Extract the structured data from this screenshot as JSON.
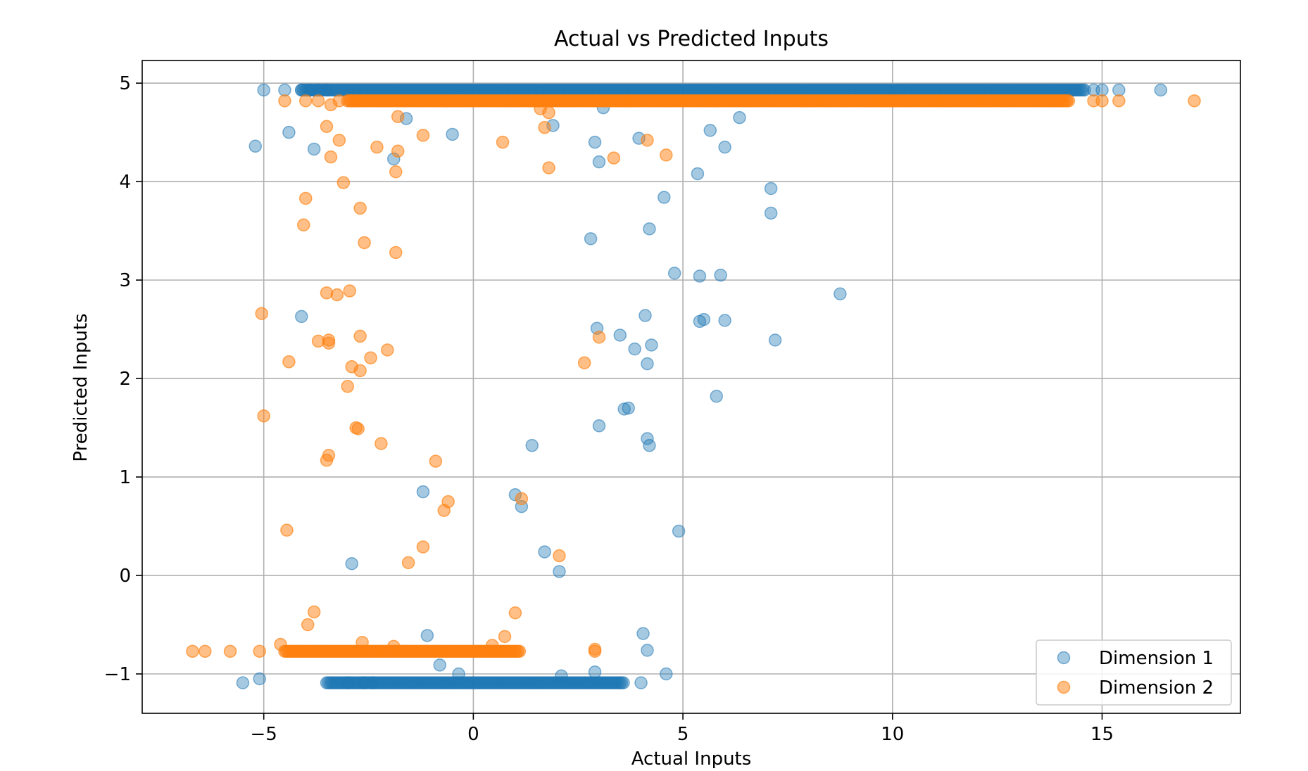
{
  "chart_data": {
    "type": "scatter",
    "title": "Actual vs Predicted Inputs",
    "xlabel": "Actual Inputs",
    "ylabel": "Predicted Inputs",
    "xlim": [
      -7.9,
      18.3
    ],
    "ylim": [
      -1.4,
      5.23
    ],
    "xticks": [
      -5,
      0,
      5,
      10,
      15
    ],
    "xtick_labels": [
      "−5",
      "0",
      "5",
      "10",
      "15"
    ],
    "yticks": [
      -1,
      0,
      1,
      2,
      3,
      4,
      5
    ],
    "ytick_labels": [
      "−1",
      "0",
      "1",
      "2",
      "3",
      "4",
      "5"
    ],
    "grid": true,
    "legend_position": "lower-right",
    "series": [
      {
        "name": "Dimension 1",
        "color": "#1f77b4",
        "opacity": 0.4,
        "band_upper": {
          "x_from": -4.1,
          "x_to": 14.6,
          "y": 4.93
        },
        "band_lower": {
          "x_from": -3.5,
          "x_to": 3.6,
          "y": -1.09
        },
        "points": [
          [
            -5.0,
            4.93
          ],
          [
            -4.5,
            4.93
          ],
          [
            -4.1,
            4.93
          ],
          [
            -3.9,
            4.93
          ],
          [
            -3.7,
            4.93
          ],
          [
            -3.5,
            4.93
          ],
          [
            14.8,
            4.93
          ],
          [
            15.0,
            4.93
          ],
          [
            15.4,
            4.93
          ],
          [
            16.4,
            4.93
          ],
          [
            -5.5,
            -1.09
          ],
          [
            -5.1,
            -1.05
          ],
          [
            -3.0,
            -1.09
          ],
          [
            -2.6,
            -1.09
          ],
          [
            -2.4,
            -1.09
          ],
          [
            4.0,
            -1.09
          ],
          [
            -5.2,
            4.36
          ],
          [
            -4.4,
            4.5
          ],
          [
            -3.8,
            4.33
          ],
          [
            -1.9,
            4.23
          ],
          [
            -1.6,
            4.64
          ],
          [
            -0.5,
            4.48
          ],
          [
            1.9,
            4.57
          ],
          [
            2.9,
            4.4
          ],
          [
            3.0,
            4.2
          ],
          [
            3.1,
            4.75
          ],
          [
            3.95,
            4.44
          ],
          [
            5.35,
            4.08
          ],
          [
            5.65,
            4.52
          ],
          [
            6.0,
            4.35
          ],
          [
            6.35,
            4.65
          ],
          [
            7.1,
            3.93
          ],
          [
            7.1,
            3.68
          ],
          [
            4.55,
            3.84
          ],
          [
            4.2,
            3.52
          ],
          [
            2.8,
            3.42
          ],
          [
            4.8,
            3.07
          ],
          [
            5.4,
            3.04
          ],
          [
            5.9,
            3.05
          ],
          [
            8.75,
            2.86
          ],
          [
            -4.1,
            2.63
          ],
          [
            2.95,
            2.51
          ],
          [
            4.1,
            2.64
          ],
          [
            3.5,
            2.44
          ],
          [
            4.25,
            2.34
          ],
          [
            3.85,
            2.3
          ],
          [
            4.15,
            2.15
          ],
          [
            5.4,
            2.58
          ],
          [
            5.5,
            2.6
          ],
          [
            6.0,
            2.59
          ],
          [
            7.2,
            2.39
          ],
          [
            5.8,
            1.82
          ],
          [
            3.6,
            1.69
          ],
          [
            3.7,
            1.7
          ],
          [
            3.0,
            1.52
          ],
          [
            4.15,
            1.39
          ],
          [
            4.2,
            1.32
          ],
          [
            1.4,
            1.32
          ],
          [
            -1.2,
            0.85
          ],
          [
            1.0,
            0.82
          ],
          [
            1.15,
            0.7
          ],
          [
            4.9,
            0.45
          ],
          [
            -2.9,
            0.12
          ],
          [
            1.7,
            0.24
          ],
          [
            2.05,
            0.04
          ],
          [
            -1.1,
            -0.61
          ],
          [
            -0.8,
            -0.91
          ],
          [
            -0.35,
            -1.0
          ],
          [
            2.1,
            -1.02
          ],
          [
            2.9,
            -0.98
          ],
          [
            4.05,
            -0.59
          ],
          [
            4.15,
            -0.76
          ],
          [
            4.6,
            -1.0
          ]
        ]
      },
      {
        "name": "Dimension 2",
        "color": "#ff7f0e",
        "opacity": 0.5,
        "band_upper": {
          "x_from": -3.0,
          "x_to": 14.2,
          "y": 4.82
        },
        "band_lower": {
          "x_from": -4.5,
          "x_to": 1.1,
          "y": -0.77
        },
        "points": [
          [
            -4.5,
            4.82
          ],
          [
            -4.0,
            4.82
          ],
          [
            -3.7,
            4.82
          ],
          [
            -3.4,
            4.78
          ],
          [
            -3.2,
            4.82
          ],
          [
            14.8,
            4.82
          ],
          [
            15.0,
            4.82
          ],
          [
            15.4,
            4.82
          ],
          [
            17.2,
            4.82
          ],
          [
            -6.7,
            -0.77
          ],
          [
            -6.4,
            -0.77
          ],
          [
            -5.8,
            -0.77
          ],
          [
            -5.1,
            -0.77
          ],
          [
            2.9,
            -0.77
          ],
          [
            2.9,
            -0.75
          ],
          [
            -3.5,
            4.56
          ],
          [
            -3.2,
            4.42
          ],
          [
            -3.4,
            4.25
          ],
          [
            -2.3,
            4.35
          ],
          [
            -1.8,
            4.31
          ],
          [
            -1.85,
            4.1
          ],
          [
            -1.8,
            4.66
          ],
          [
            -1.2,
            4.47
          ],
          [
            0.7,
            4.4
          ],
          [
            1.7,
            4.55
          ],
          [
            1.8,
            4.7
          ],
          [
            1.8,
            4.14
          ],
          [
            3.35,
            4.24
          ],
          [
            4.15,
            4.42
          ],
          [
            4.6,
            4.27
          ],
          [
            1.6,
            4.74
          ],
          [
            -3.1,
            3.99
          ],
          [
            -4.0,
            3.83
          ],
          [
            -2.7,
            3.73
          ],
          [
            -4.05,
            3.56
          ],
          [
            -2.6,
            3.38
          ],
          [
            -1.85,
            3.28
          ],
          [
            -3.5,
            2.87
          ],
          [
            -3.25,
            2.85
          ],
          [
            -2.95,
            2.89
          ],
          [
            -5.05,
            2.66
          ],
          [
            -3.7,
            2.38
          ],
          [
            -3.45,
            2.39
          ],
          [
            -3.45,
            2.36
          ],
          [
            -2.7,
            2.43
          ],
          [
            -2.05,
            2.29
          ],
          [
            -4.4,
            2.17
          ],
          [
            -2.45,
            2.21
          ],
          [
            -2.9,
            2.12
          ],
          [
            -2.7,
            2.08
          ],
          [
            -3.0,
            1.92
          ],
          [
            2.65,
            2.16
          ],
          [
            3.0,
            2.42
          ],
          [
            -5.0,
            1.62
          ],
          [
            -2.8,
            1.5
          ],
          [
            -2.75,
            1.49
          ],
          [
            -2.2,
            1.34
          ],
          [
            -3.5,
            1.17
          ],
          [
            -3.45,
            1.22
          ],
          [
            -0.9,
            1.16
          ],
          [
            -0.6,
            0.75
          ],
          [
            -0.7,
            0.66
          ],
          [
            1.15,
            0.78
          ],
          [
            -4.45,
            0.46
          ],
          [
            -1.2,
            0.29
          ],
          [
            -1.55,
            0.13
          ],
          [
            2.05,
            0.2
          ],
          [
            -3.8,
            -0.37
          ],
          [
            -3.95,
            -0.5
          ],
          [
            1.0,
            -0.38
          ],
          [
            0.75,
            -0.62
          ],
          [
            -4.6,
            -0.7
          ],
          [
            -2.65,
            -0.68
          ],
          [
            -1.9,
            -0.72
          ],
          [
            0.45,
            -0.71
          ]
        ]
      }
    ]
  }
}
